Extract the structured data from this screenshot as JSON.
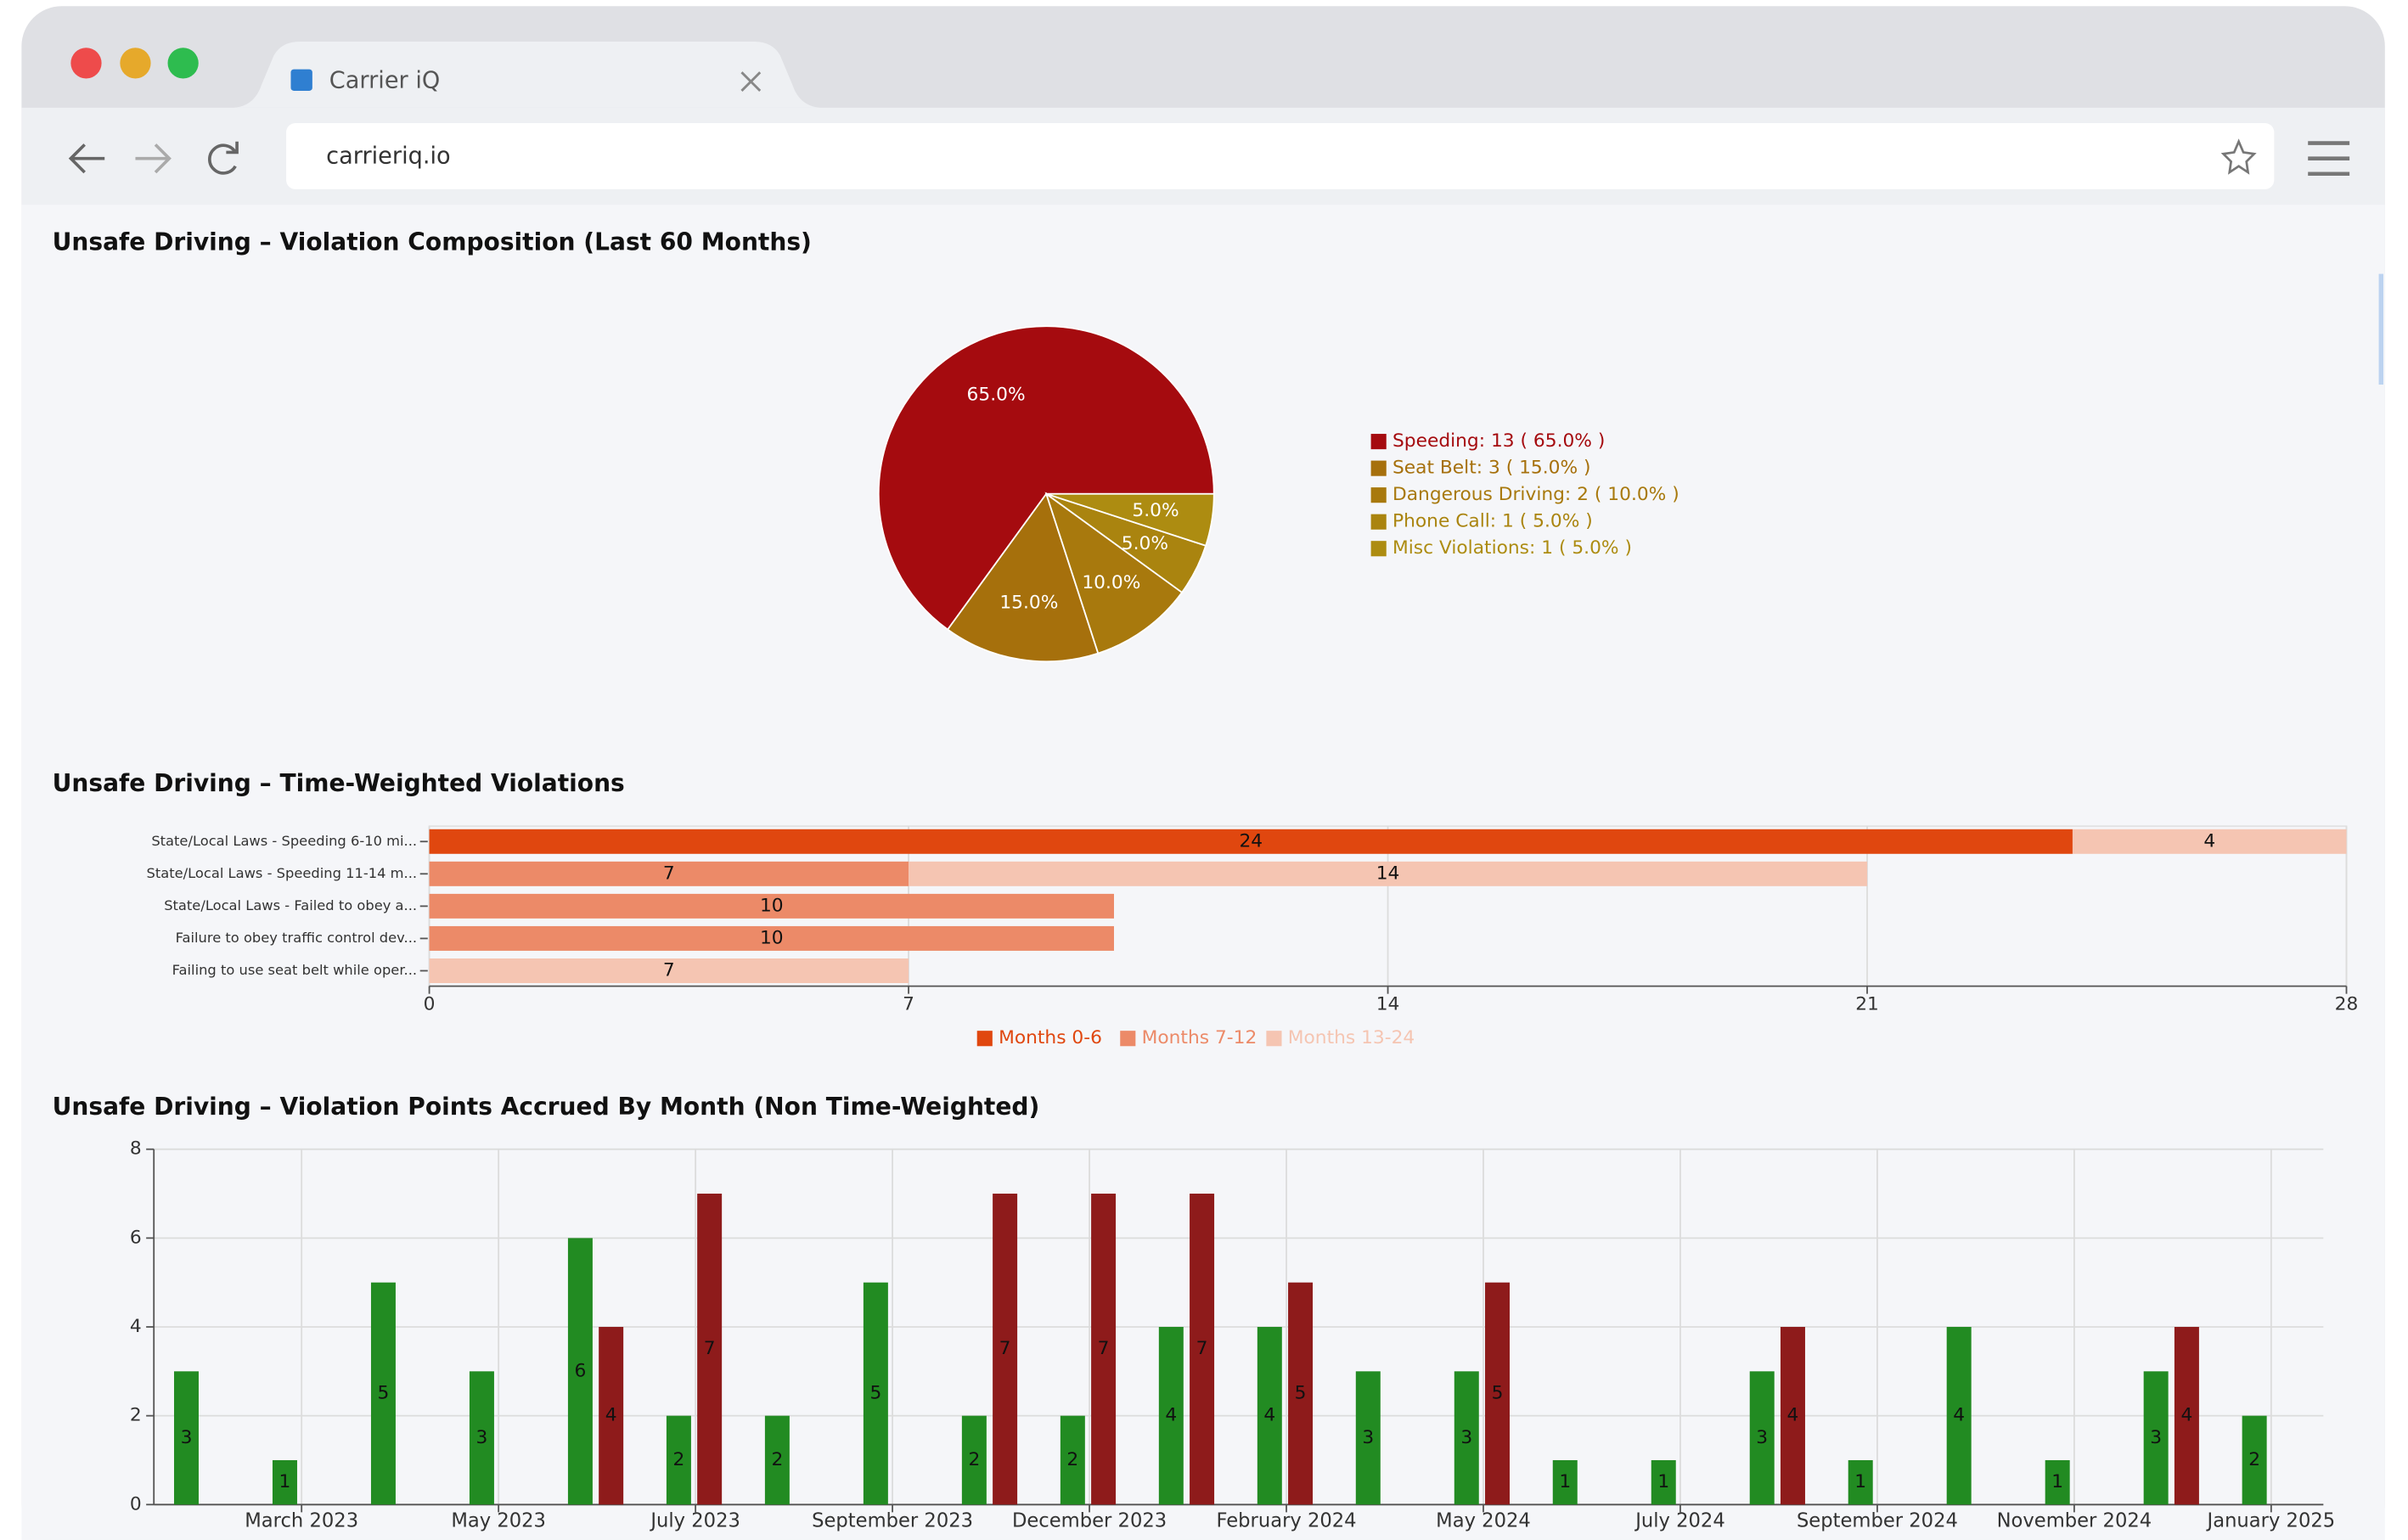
{
  "browser": {
    "tab_title": "Carrier iQ",
    "url": "carrieriq.io"
  },
  "chart_data": [
    {
      "type": "pie",
      "title": "Unsafe Driving – Violation Composition (Last 60 Months)",
      "categories": [
        "Speeding",
        "Seat Belt",
        "Dangerous Driving",
        "Phone Call",
        "Misc Violations"
      ],
      "legend_labels": [
        "Speeding: 13 ( 65.0% )",
        "Seat Belt: 3 ( 15.0% )",
        "Dangerous Driving: 2 ( 10.0% )",
        "Phone Call: 1 ( 5.0% )",
        "Misc Violations: 1 ( 5.0% )"
      ],
      "values": [
        65,
        15,
        10,
        5,
        5
      ],
      "value_labels": [
        "65.0%",
        "15.0%",
        "10.0%",
        "5.0%",
        "5.0%"
      ],
      "colors": [
        "#a50b0f",
        "#a6700c",
        "#a8790d",
        "#aa840f",
        "#ad8c11"
      ]
    },
    {
      "type": "hbar",
      "title": "Unsafe Driving – Time-Weighted Violations",
      "categories": [
        "State/Local Laws - Speeding 6-10 mi...",
        "State/Local Laws - Speeding 11-14 m...",
        "State/Local Laws - Failed to obey a...",
        "Failure to obey traffic control dev...",
        "Failing to use seat belt while oper..."
      ],
      "series": [
        {
          "name": "Months 0-6",
          "color": "#e0470f",
          "values": [
            24,
            null,
            null,
            null,
            null
          ]
        },
        {
          "name": "Months 7-12",
          "color": "#ec8a68",
          "values": [
            null,
            7,
            10,
            10,
            null
          ]
        },
        {
          "name": "Months 13-24",
          "color": "#f5c5b2",
          "values": [
            4,
            14,
            null,
            null,
            7
          ]
        }
      ],
      "xlim": [
        0,
        28
      ],
      "xticks": [
        0,
        7,
        14,
        21,
        28
      ],
      "grid": true
    },
    {
      "type": "bar",
      "title": "Unsafe Driving – Violation Points Accrued By Month (Non Time-Weighted)",
      "categories": [
        null,
        null,
        null,
        null,
        null,
        null,
        null,
        null,
        null,
        null,
        null,
        null,
        null,
        null,
        null,
        null,
        null,
        null,
        null,
        null,
        null,
        null
      ],
      "series": [
        {
          "color": "#228b22",
          "values": [
            3,
            1,
            5,
            3,
            6,
            2,
            2,
            5,
            2,
            2,
            4,
            4,
            3,
            3,
            1,
            1,
            3,
            1,
            4,
            1,
            3,
            2
          ]
        },
        {
          "color": "#8e1b1b",
          "values": [
            null,
            null,
            null,
            null,
            4,
            7,
            null,
            null,
            7,
            7,
            7,
            5,
            null,
            5,
            null,
            null,
            4,
            null,
            null,
            null,
            4,
            null
          ]
        }
      ],
      "xlim": [
        -0.33,
        21.7
      ],
      "xticks": [
        {
          "value": 1.17,
          "label": "March 2023"
        },
        {
          "value": 3.17,
          "label": "May 2023"
        },
        {
          "value": 5.17,
          "label": "July 2023"
        },
        {
          "value": 7.17,
          "label": "September 2023"
        },
        {
          "value": 9.17,
          "label": "December 2023"
        },
        {
          "value": 11.17,
          "label": "February 2024"
        },
        {
          "value": 13.17,
          "label": "May 2024"
        },
        {
          "value": 15.17,
          "label": "July 2024"
        },
        {
          "value": 17.17,
          "label": "September 2024"
        },
        {
          "value": 19.17,
          "label": "November 2024"
        },
        {
          "value": 21.17,
          "label": "January 2025"
        }
      ],
      "ylim": [
        0,
        8
      ],
      "yticks": [
        0,
        2,
        4,
        6,
        8
      ],
      "grid": true
    }
  ]
}
